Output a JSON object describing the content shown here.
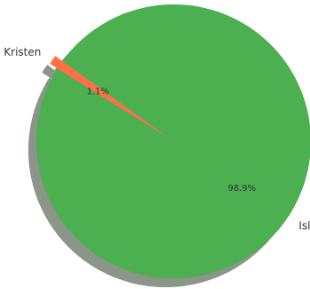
{
  "chart_data": {
    "type": "pie",
    "title": "",
    "categories": [
      "Kristen",
      "Islam"
    ],
    "values": [
      1.1,
      98.9
    ],
    "labels": [
      "1.1%",
      "98.9%"
    ],
    "colors": [
      "#ff7043",
      "#4caf50"
    ],
    "shadow_color": "#8c9589",
    "exploded": [
      "Kristen"
    ],
    "shadow": true,
    "legend": "none"
  }
}
